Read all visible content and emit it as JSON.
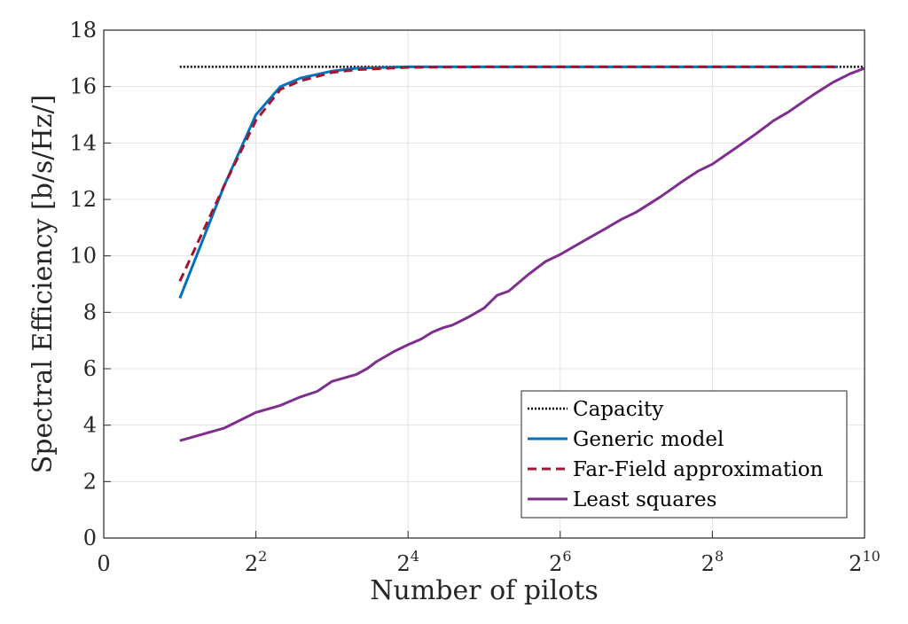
{
  "chart_data": {
    "type": "line",
    "xlabel": "Number of pilots",
    "ylabel": "Spectral Efficiency [b/s/Hz/]",
    "x_scale": "log2",
    "xlim": [
      1,
      1024
    ],
    "ylim": [
      0,
      18
    ],
    "grid": true,
    "legend_position": "bottom-right",
    "x_ticks": [
      {
        "value": 1,
        "base": "0",
        "exp": ""
      },
      {
        "value": 4,
        "base": "2",
        "exp": "2"
      },
      {
        "value": 16,
        "base": "2",
        "exp": "4"
      },
      {
        "value": 64,
        "base": "2",
        "exp": "6"
      },
      {
        "value": 256,
        "base": "2",
        "exp": "8"
      },
      {
        "value": 1024,
        "base": "2",
        "exp": "10"
      }
    ],
    "y_ticks": [
      0,
      2,
      4,
      6,
      8,
      10,
      12,
      14,
      16,
      18
    ],
    "series": [
      {
        "name": "Capacity",
        "color": "#000000",
        "style": "dotted",
        "points": [
          [
            2,
            16.7
          ],
          [
            1024,
            16.7
          ]
        ]
      },
      {
        "name": "Generic model",
        "color": "#0072BD",
        "style": "solid",
        "points": [
          [
            2,
            8.5
          ],
          [
            3,
            12.5
          ],
          [
            4,
            15.0
          ],
          [
            5,
            16.0
          ],
          [
            6,
            16.3
          ],
          [
            8,
            16.55
          ],
          [
            10,
            16.65
          ],
          [
            16,
            16.7
          ],
          [
            32,
            16.7
          ],
          [
            64,
            16.7
          ],
          [
            128,
            16.7
          ],
          [
            256,
            16.7
          ],
          [
            512,
            16.7
          ],
          [
            800,
            16.7
          ]
        ]
      },
      {
        "name": "Far-Field approximation",
        "color": "#A2142F",
        "style": "dashed",
        "points": [
          [
            2,
            9.1
          ],
          [
            3,
            12.5
          ],
          [
            4,
            14.8
          ],
          [
            5,
            15.9
          ],
          [
            6,
            16.2
          ],
          [
            8,
            16.5
          ],
          [
            10,
            16.6
          ],
          [
            16,
            16.68
          ],
          [
            32,
            16.7
          ],
          [
            64,
            16.7
          ],
          [
            128,
            16.7
          ],
          [
            256,
            16.7
          ],
          [
            512,
            16.7
          ],
          [
            800,
            16.7
          ]
        ]
      },
      {
        "name": "Least squares",
        "color": "#7E2F8E",
        "style": "solid",
        "points": [
          [
            2,
            3.45
          ],
          [
            3,
            3.9
          ],
          [
            4,
            4.45
          ],
          [
            5,
            4.7
          ],
          [
            6,
            5.0
          ],
          [
            7,
            5.2
          ],
          [
            8,
            5.55
          ],
          [
            10,
            5.8
          ],
          [
            11,
            6.0
          ],
          [
            12,
            6.25
          ],
          [
            14,
            6.6
          ],
          [
            16,
            6.85
          ],
          [
            18,
            7.05
          ],
          [
            20,
            7.3
          ],
          [
            22,
            7.45
          ],
          [
            24,
            7.55
          ],
          [
            28,
            7.85
          ],
          [
            32,
            8.15
          ],
          [
            36,
            8.6
          ],
          [
            40,
            8.75
          ],
          [
            48,
            9.35
          ],
          [
            56,
            9.8
          ],
          [
            64,
            10.05
          ],
          [
            80,
            10.55
          ],
          [
            96,
            10.95
          ],
          [
            112,
            11.3
          ],
          [
            128,
            11.55
          ],
          [
            160,
            12.1
          ],
          [
            192,
            12.6
          ],
          [
            224,
            13.0
          ],
          [
            256,
            13.25
          ],
          [
            320,
            13.85
          ],
          [
            384,
            14.35
          ],
          [
            448,
            14.8
          ],
          [
            512,
            15.1
          ],
          [
            640,
            15.7
          ],
          [
            768,
            16.15
          ],
          [
            896,
            16.45
          ],
          [
            1024,
            16.65
          ]
        ]
      }
    ]
  }
}
